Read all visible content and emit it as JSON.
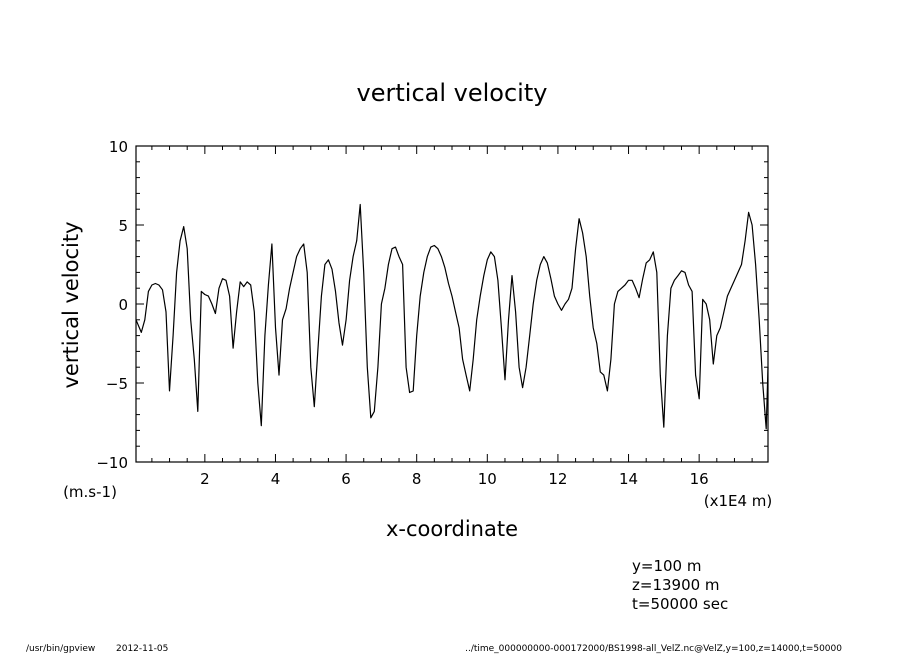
{
  "chart_data": {
    "type": "line",
    "title": "vertical velocity",
    "xlabel": "x-coordinate",
    "ylabel": "vertical velocity",
    "x_unit": "(x1E4 m)",
    "y_unit": "(m.s-1)",
    "xlim": [
      0.05,
      17.95
    ],
    "ylim": [
      -10,
      10
    ],
    "x_ticks": [
      2,
      4,
      6,
      8,
      10,
      12,
      14,
      16
    ],
    "x_tick_labels": [
      "2",
      "4",
      "6",
      "8",
      "10",
      "12",
      "14",
      "16"
    ],
    "y_ticks": [
      -10,
      -5,
      0,
      5,
      10
    ],
    "y_tick_labels": [
      "−10",
      "−5",
      "0",
      "5",
      "10"
    ],
    "grid": false,
    "series": [
      {
        "points": [
          [
            0.05,
            -1.0
          ],
          [
            0.2,
            -1.8
          ],
          [
            0.3,
            -1.0
          ],
          [
            0.4,
            0.8
          ],
          [
            0.5,
            1.2
          ],
          [
            0.6,
            1.3
          ],
          [
            0.7,
            1.2
          ],
          [
            0.8,
            0.9
          ],
          [
            0.9,
            -0.5
          ],
          [
            1.0,
            -5.5
          ],
          [
            1.1,
            -2.0
          ],
          [
            1.2,
            2.0
          ],
          [
            1.3,
            4.0
          ],
          [
            1.4,
            4.9
          ],
          [
            1.5,
            3.5
          ],
          [
            1.6,
            -1.0
          ],
          [
            1.7,
            -3.5
          ],
          [
            1.8,
            -6.8
          ],
          [
            1.9,
            0.8
          ],
          [
            2.0,
            0.6
          ],
          [
            2.1,
            0.5
          ],
          [
            2.2,
            0.0
          ],
          [
            2.3,
            -0.6
          ],
          [
            2.4,
            1.0
          ],
          [
            2.5,
            1.6
          ],
          [
            2.6,
            1.5
          ],
          [
            2.7,
            0.5
          ],
          [
            2.8,
            -2.8
          ],
          [
            2.9,
            -0.5
          ],
          [
            3.0,
            1.4
          ],
          [
            3.1,
            1.1
          ],
          [
            3.2,
            1.4
          ],
          [
            3.3,
            1.2
          ],
          [
            3.4,
            -0.5
          ],
          [
            3.5,
            -5.0
          ],
          [
            3.6,
            -7.7
          ],
          [
            3.7,
            -2.0
          ],
          [
            3.8,
            1.2
          ],
          [
            3.9,
            3.8
          ],
          [
            4.0,
            -1.5
          ],
          [
            4.1,
            -4.5
          ],
          [
            4.2,
            -1.0
          ],
          [
            4.3,
            -0.3
          ],
          [
            4.4,
            1.0
          ],
          [
            4.5,
            2.0
          ],
          [
            4.6,
            3.0
          ],
          [
            4.7,
            3.5
          ],
          [
            4.8,
            3.8
          ],
          [
            4.9,
            2.0
          ],
          [
            5.0,
            -4.0
          ],
          [
            5.1,
            -6.5
          ],
          [
            5.2,
            -3.0
          ],
          [
            5.3,
            0.5
          ],
          [
            5.4,
            2.5
          ],
          [
            5.5,
            2.8
          ],
          [
            5.6,
            2.2
          ],
          [
            5.7,
            0.8
          ],
          [
            5.8,
            -1.2
          ],
          [
            5.9,
            -2.6
          ],
          [
            6.0,
            -1.0
          ],
          [
            6.1,
            1.5
          ],
          [
            6.2,
            3.0
          ],
          [
            6.3,
            4.0
          ],
          [
            6.4,
            6.3
          ],
          [
            6.5,
            2.0
          ],
          [
            6.6,
            -4.0
          ],
          [
            6.7,
            -7.2
          ],
          [
            6.8,
            -6.8
          ],
          [
            6.9,
            -4.0
          ],
          [
            7.0,
            0.0
          ],
          [
            7.1,
            1.0
          ],
          [
            7.2,
            2.5
          ],
          [
            7.3,
            3.5
          ],
          [
            7.4,
            3.6
          ],
          [
            7.5,
            3.0
          ],
          [
            7.6,
            2.5
          ],
          [
            7.7,
            -4.0
          ],
          [
            7.8,
            -5.6
          ],
          [
            7.9,
            -5.5
          ],
          [
            8.0,
            -2.0
          ],
          [
            8.1,
            0.5
          ],
          [
            8.2,
            2.0
          ],
          [
            8.3,
            3.0
          ],
          [
            8.4,
            3.6
          ],
          [
            8.5,
            3.7
          ],
          [
            8.6,
            3.5
          ],
          [
            8.7,
            3.0
          ],
          [
            8.8,
            2.3
          ],
          [
            8.9,
            1.3
          ],
          [
            9.0,
            0.5
          ],
          [
            9.1,
            -0.5
          ],
          [
            9.2,
            -1.5
          ],
          [
            9.3,
            -3.5
          ],
          [
            9.4,
            -4.5
          ],
          [
            9.5,
            -5.5
          ],
          [
            9.6,
            -3.5
          ],
          [
            9.7,
            -1.0
          ],
          [
            9.8,
            0.5
          ],
          [
            9.9,
            1.8
          ],
          [
            10.0,
            2.8
          ],
          [
            10.1,
            3.3
          ],
          [
            10.2,
            3.0
          ],
          [
            10.3,
            1.5
          ],
          [
            10.4,
            -1.5
          ],
          [
            10.5,
            -4.8
          ],
          [
            10.6,
            -1.0
          ],
          [
            10.7,
            1.8
          ],
          [
            10.8,
            -0.5
          ],
          [
            10.9,
            -4.0
          ],
          [
            11.0,
            -5.3
          ],
          [
            11.1,
            -4.0
          ],
          [
            11.2,
            -2.0
          ],
          [
            11.3,
            0.0
          ],
          [
            11.4,
            1.5
          ],
          [
            11.5,
            2.5
          ],
          [
            11.6,
            3.0
          ],
          [
            11.7,
            2.6
          ],
          [
            11.8,
            1.6
          ],
          [
            11.9,
            0.5
          ],
          [
            12.0,
            0.0
          ],
          [
            12.1,
            -0.4
          ],
          [
            12.2,
            0.0
          ],
          [
            12.3,
            0.3
          ],
          [
            12.4,
            1.0
          ],
          [
            12.5,
            3.5
          ],
          [
            12.6,
            5.4
          ],
          [
            12.7,
            4.5
          ],
          [
            12.8,
            3.0
          ],
          [
            12.9,
            0.5
          ],
          [
            13.0,
            -1.5
          ],
          [
            13.1,
            -2.5
          ],
          [
            13.2,
            -4.3
          ],
          [
            13.3,
            -4.5
          ],
          [
            13.4,
            -5.5
          ],
          [
            13.5,
            -3.5
          ],
          [
            13.6,
            0.0
          ],
          [
            13.7,
            0.8
          ],
          [
            13.8,
            1.0
          ],
          [
            13.9,
            1.2
          ],
          [
            14.0,
            1.5
          ],
          [
            14.1,
            1.5
          ],
          [
            14.2,
            1.0
          ],
          [
            14.3,
            0.4
          ],
          [
            14.4,
            1.6
          ],
          [
            14.5,
            2.6
          ],
          [
            14.6,
            2.8
          ],
          [
            14.7,
            3.3
          ],
          [
            14.8,
            2.0
          ],
          [
            14.9,
            -4.5
          ],
          [
            15.0,
            -7.8
          ],
          [
            15.1,
            -2.0
          ],
          [
            15.2,
            1.0
          ],
          [
            15.3,
            1.5
          ],
          [
            15.4,
            1.8
          ],
          [
            15.5,
            2.1
          ],
          [
            15.6,
            2.0
          ],
          [
            15.7,
            1.2
          ],
          [
            15.8,
            0.8
          ],
          [
            15.9,
            -4.5
          ],
          [
            16.0,
            -6.0
          ],
          [
            16.1,
            0.3
          ],
          [
            16.2,
            0.0
          ],
          [
            16.3,
            -1.0
          ],
          [
            16.4,
            -3.8
          ],
          [
            16.5,
            -2.0
          ],
          [
            16.6,
            -1.5
          ],
          [
            16.7,
            -0.5
          ],
          [
            16.8,
            0.5
          ],
          [
            16.9,
            1.0
          ],
          [
            17.0,
            1.5
          ],
          [
            17.1,
            2.0
          ],
          [
            17.2,
            2.5
          ],
          [
            17.3,
            4.0
          ],
          [
            17.4,
            5.8
          ],
          [
            17.5,
            5.0
          ],
          [
            17.6,
            2.5
          ],
          [
            17.7,
            -1.0
          ],
          [
            17.8,
            -5.0
          ],
          [
            17.9,
            -7.9
          ],
          [
            17.95,
            -4.0
          ]
        ]
      }
    ],
    "annotations": {
      "y": "y=100  m",
      "z": "z=13900  m",
      "t": "t=50000  sec"
    }
  },
  "footer": {
    "program": "/usr/bin/gpview",
    "date": "2012-11-05",
    "source": "../time_000000000-000172000/BS1998-all_VelZ.nc@VelZ,y=100,z=14000,t=50000"
  }
}
